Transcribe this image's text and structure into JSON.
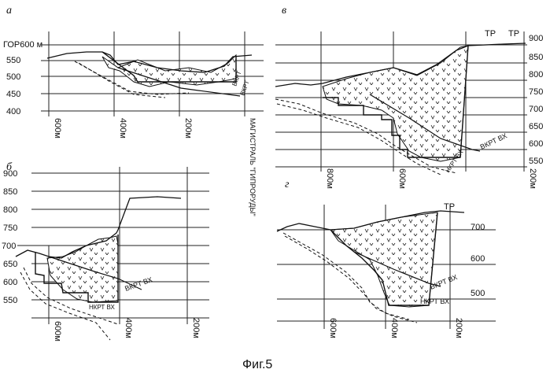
{
  "figure_caption": "Фиг.5",
  "panels": {
    "a": {
      "label": "а",
      "elev_labels": [
        "ГОР600 м",
        "550",
        "500",
        "450",
        "400"
      ],
      "dist_labels": [
        "600м",
        "400м",
        "200м"
      ],
      "marker_label": "МАГИСТРАЛЬ \"ГИПРОРУДЫ\"",
      "line_labels": [
        "ВКРТ",
        "ВКРТ"
      ]
    },
    "b": {
      "label": "б",
      "elev_labels": [
        "900",
        "850",
        "800",
        "750",
        "700",
        "650",
        "600",
        "550"
      ],
      "dist_labels": [
        "600м",
        "400м",
        "200м"
      ],
      "line_labels": [
        "ВКРТ ВХ",
        "НКРТ ВХ"
      ]
    },
    "v": {
      "label": "в",
      "elev_labels": [
        "900",
        "850",
        "800",
        "750",
        "700",
        "650",
        "600",
        "550"
      ],
      "dist_labels": [
        "800м",
        "600м",
        "200м"
      ],
      "top_labels": [
        "ТР",
        "ТР"
      ],
      "line_labels": [
        "ВКРТ ВХ",
        "НКРТ ВХ"
      ]
    },
    "g": {
      "label": "г",
      "elev_labels": [
        "700",
        "600",
        "500"
      ],
      "dist_labels": [
        "600м",
        "400м",
        "200м"
      ],
      "top_labels": [
        "ТР"
      ],
      "line_labels": [
        "ВКРТ ВХ",
        "НКРТ ВХ"
      ]
    }
  }
}
